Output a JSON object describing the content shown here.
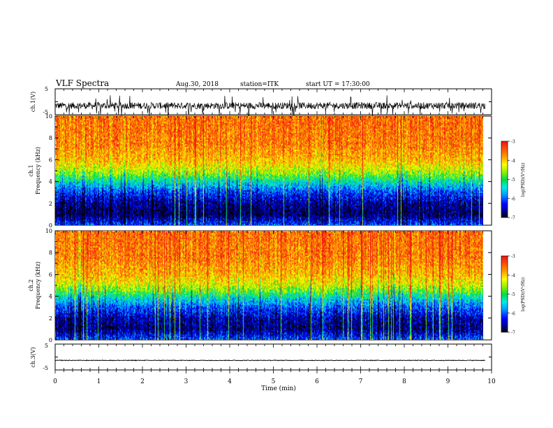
{
  "header": {
    "title": "VLF Spectra",
    "date": "Aug.30, 2018",
    "station": "station=ITK",
    "start": "start UT = 17:30:00"
  },
  "chart_data": [
    {
      "type": "line",
      "name": "ch.1 waveform",
      "ylabel": "ch.1(V)",
      "ylim": [
        -5,
        5
      ],
      "yticks": [
        "5",
        "-5"
      ],
      "xlim": [
        0,
        10
      ],
      "grid": false,
      "baseline": -1.5,
      "description_values": {
        "noise_band": [
          -2.5,
          0.5
        ],
        "spike_min": -5,
        "spike_max": 2.5
      }
    },
    {
      "type": "heatmap",
      "name": "ch.1 spectrogram",
      "ylabel_line1": "ch.1",
      "ylabel_line2": "Frequency (kHz)",
      "ylim": [
        0,
        10
      ],
      "yticks": [
        "0",
        "2",
        "4",
        "6",
        "8",
        "10"
      ],
      "xlim": [
        0,
        9.8
      ],
      "colorbar": {
        "label": "log(PSD)(V²/Hz)",
        "range": [
          -7,
          -3
        ],
        "ticks": [
          "-3",
          "-4",
          "-5",
          "-6",
          "-7"
        ]
      },
      "profile_by_freq_khz": [
        {
          "f": 0.0,
          "logpsd": -6.0
        },
        {
          "f": 0.3,
          "logpsd": -6.3
        },
        {
          "f": 1.0,
          "logpsd": -6.8
        },
        {
          "f": 2.0,
          "logpsd": -6.6
        },
        {
          "f": 3.0,
          "logpsd": -6.1
        },
        {
          "f": 4.0,
          "logpsd": -5.3
        },
        {
          "f": 4.5,
          "logpsd": -4.8
        },
        {
          "f": 5.0,
          "logpsd": -4.4
        },
        {
          "f": 6.0,
          "logpsd": -3.9
        },
        {
          "f": 7.5,
          "logpsd": -3.6
        },
        {
          "f": 10.0,
          "logpsd": -3.5
        }
      ]
    },
    {
      "type": "heatmap",
      "name": "ch.2 spectrogram",
      "ylabel_line1": "ch.2",
      "ylabel_line2": "Frequency (kHz)",
      "ylim": [
        0,
        10
      ],
      "yticks": [
        "0",
        "2",
        "4",
        "6",
        "8",
        "10"
      ],
      "xlim": [
        0,
        9.8
      ],
      "colorbar": {
        "label": "log(PSD)(V²/Hz)",
        "range": [
          -7,
          -3
        ],
        "ticks": [
          "-3",
          "-4",
          "-5",
          "-6",
          "-7"
        ]
      },
      "profile_by_freq_khz": [
        {
          "f": 0.0,
          "logpsd": -5.9
        },
        {
          "f": 0.3,
          "logpsd": -6.2
        },
        {
          "f": 1.0,
          "logpsd": -6.7
        },
        {
          "f": 2.0,
          "logpsd": -6.5
        },
        {
          "f": 3.0,
          "logpsd": -6.0
        },
        {
          "f": 4.0,
          "logpsd": -5.2
        },
        {
          "f": 4.5,
          "logpsd": -4.7
        },
        {
          "f": 5.0,
          "logpsd": -4.3
        },
        {
          "f": 6.0,
          "logpsd": -3.9
        },
        {
          "f": 7.5,
          "logpsd": -3.6
        },
        {
          "f": 10.0,
          "logpsd": -3.5
        }
      ]
    },
    {
      "type": "line",
      "name": "ch.3 waveform",
      "ylabel": "ch.3(V)",
      "ylim": [
        -5,
        5
      ],
      "yticks": [
        "5",
        "-5"
      ],
      "xlim": [
        0,
        10
      ],
      "grid": false,
      "baseline": -1.3
    }
  ],
  "xaxis": {
    "label": "Time (min)",
    "ticks": [
      "0",
      "1",
      "2",
      "3",
      "4",
      "5",
      "6",
      "7",
      "8",
      "9",
      "10"
    ]
  }
}
